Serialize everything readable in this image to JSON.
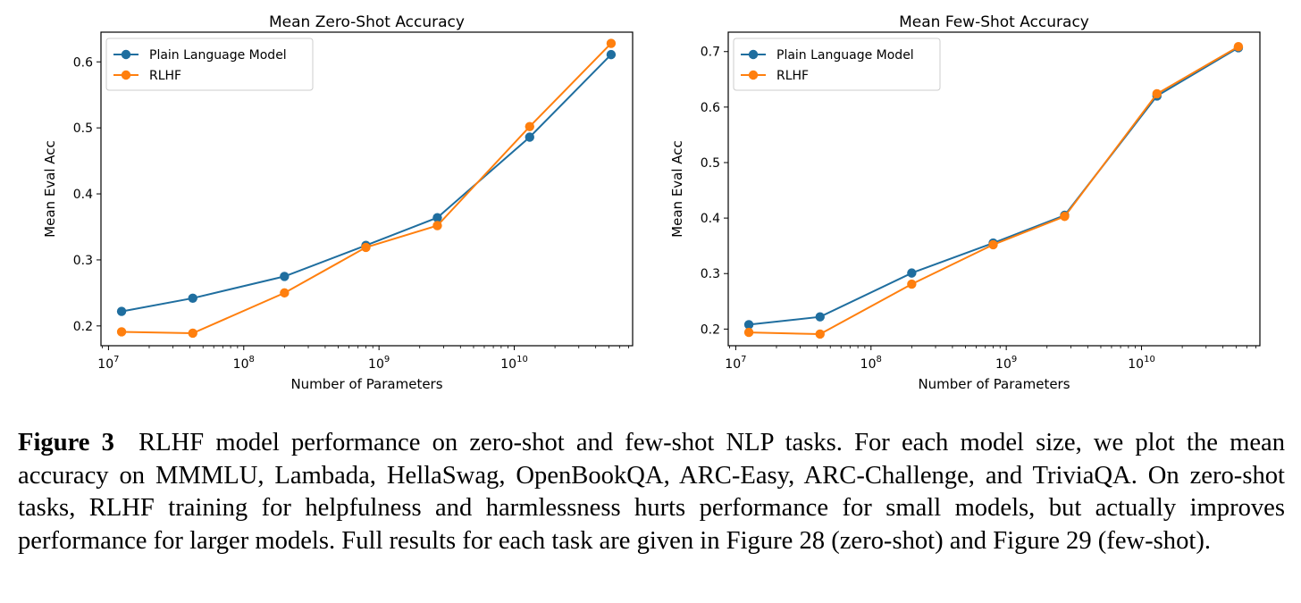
{
  "chart_data": [
    {
      "type": "line",
      "title": "Mean Zero-Shot Accuracy",
      "xlabel": "Number of Parameters",
      "ylabel": "Mean Eval Acc",
      "x_scale": "log",
      "xlim": [
        8800000,
        75000000000
      ],
      "ylim": [
        0.17,
        0.645
      ],
      "x_ticks": [
        {
          "value": 10000000,
          "base": "10",
          "exp": "7"
        },
        {
          "value": 100000000,
          "base": "10",
          "exp": "8"
        },
        {
          "value": 1000000000,
          "base": "10",
          "exp": "9"
        },
        {
          "value": 10000000000,
          "base": "10",
          "exp": "10"
        }
      ],
      "y_ticks": [
        "0.2",
        "0.3",
        "0.4",
        "0.5",
        "0.6"
      ],
      "legend": "top-left",
      "series": [
        {
          "name": "Plain Language Model",
          "color": "#1f6e9f",
          "x": [
            12500000,
            42000000,
            200000000,
            800000000,
            2700000000,
            13000000000,
            52000000000
          ],
          "y": [
            0.222,
            0.242,
            0.275,
            0.322,
            0.364,
            0.486,
            0.611
          ]
        },
        {
          "name": "RLHF",
          "color": "#ff7f0e",
          "x": [
            12500000,
            42000000,
            200000000,
            800000000,
            2700000000,
            13000000000,
            52000000000
          ],
          "y": [
            0.191,
            0.189,
            0.25,
            0.319,
            0.352,
            0.502,
            0.628
          ]
        }
      ]
    },
    {
      "type": "line",
      "title": "Mean Few-Shot Accuracy",
      "xlabel": "Number of Parameters",
      "ylabel": "Mean Eval Acc",
      "x_scale": "log",
      "xlim": [
        8800000,
        75000000000
      ],
      "ylim": [
        0.17,
        0.735
      ],
      "x_ticks": [
        {
          "value": 10000000,
          "base": "10",
          "exp": "7"
        },
        {
          "value": 100000000,
          "base": "10",
          "exp": "8"
        },
        {
          "value": 1000000000,
          "base": "10",
          "exp": "9"
        },
        {
          "value": 10000000000,
          "base": "10",
          "exp": "10"
        }
      ],
      "y_ticks": [
        "0.2",
        "0.3",
        "0.4",
        "0.5",
        "0.6",
        "0.7"
      ],
      "legend": "top-left",
      "series": [
        {
          "name": "Plain Language Model",
          "color": "#1f6e9f",
          "x": [
            12500000,
            42000000,
            200000000,
            800000000,
            2700000000,
            13000000000,
            52000000000
          ],
          "y": [
            0.208,
            0.222,
            0.301,
            0.355,
            0.405,
            0.62,
            0.707
          ]
        },
        {
          "name": "RLHF",
          "color": "#ff7f0e",
          "x": [
            12500000,
            42000000,
            200000000,
            800000000,
            2700000000,
            13000000000,
            52000000000
          ],
          "y": [
            0.194,
            0.191,
            0.281,
            0.352,
            0.403,
            0.624,
            0.709
          ]
        }
      ]
    }
  ],
  "caption": {
    "label": "Figure 3",
    "text": "RLHF model performance on zero-shot and few-shot NLP tasks. For each model size, we plot the mean accuracy on MMMLU, Lambada, HellaSwag, OpenBookQA, ARC-Easy, ARC-Challenge, and TriviaQA. On zero-shot tasks, RLHF training for helpfulness and harmlessness hurts performance for small models, but actually improves performance for larger models. Full results for each task are given in Figure 28 (zero-shot) and Figure 29 (few-shot)."
  }
}
